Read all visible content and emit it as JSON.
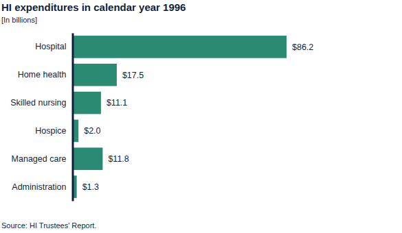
{
  "chart_data": {
    "type": "bar",
    "orientation": "horizontal",
    "title": "HI expenditures in calendar year 1996",
    "subtitle": "[In billions]",
    "source": "Source: HI Trustees' Report.",
    "categories": [
      "Hospital",
      "Home health",
      "Skilled nursing",
      "Hospice",
      "Managed care",
      "Administration"
    ],
    "values": [
      86.2,
      17.5,
      11.1,
      2.0,
      11.8,
      1.3
    ],
    "value_labels": [
      "$86.2",
      "$17.5",
      "$11.1",
      "$2.0",
      "$11.8",
      "$1.3"
    ],
    "data_labels": true,
    "tick_labels": "y",
    "grid": false,
    "color": "#2a8a72"
  }
}
